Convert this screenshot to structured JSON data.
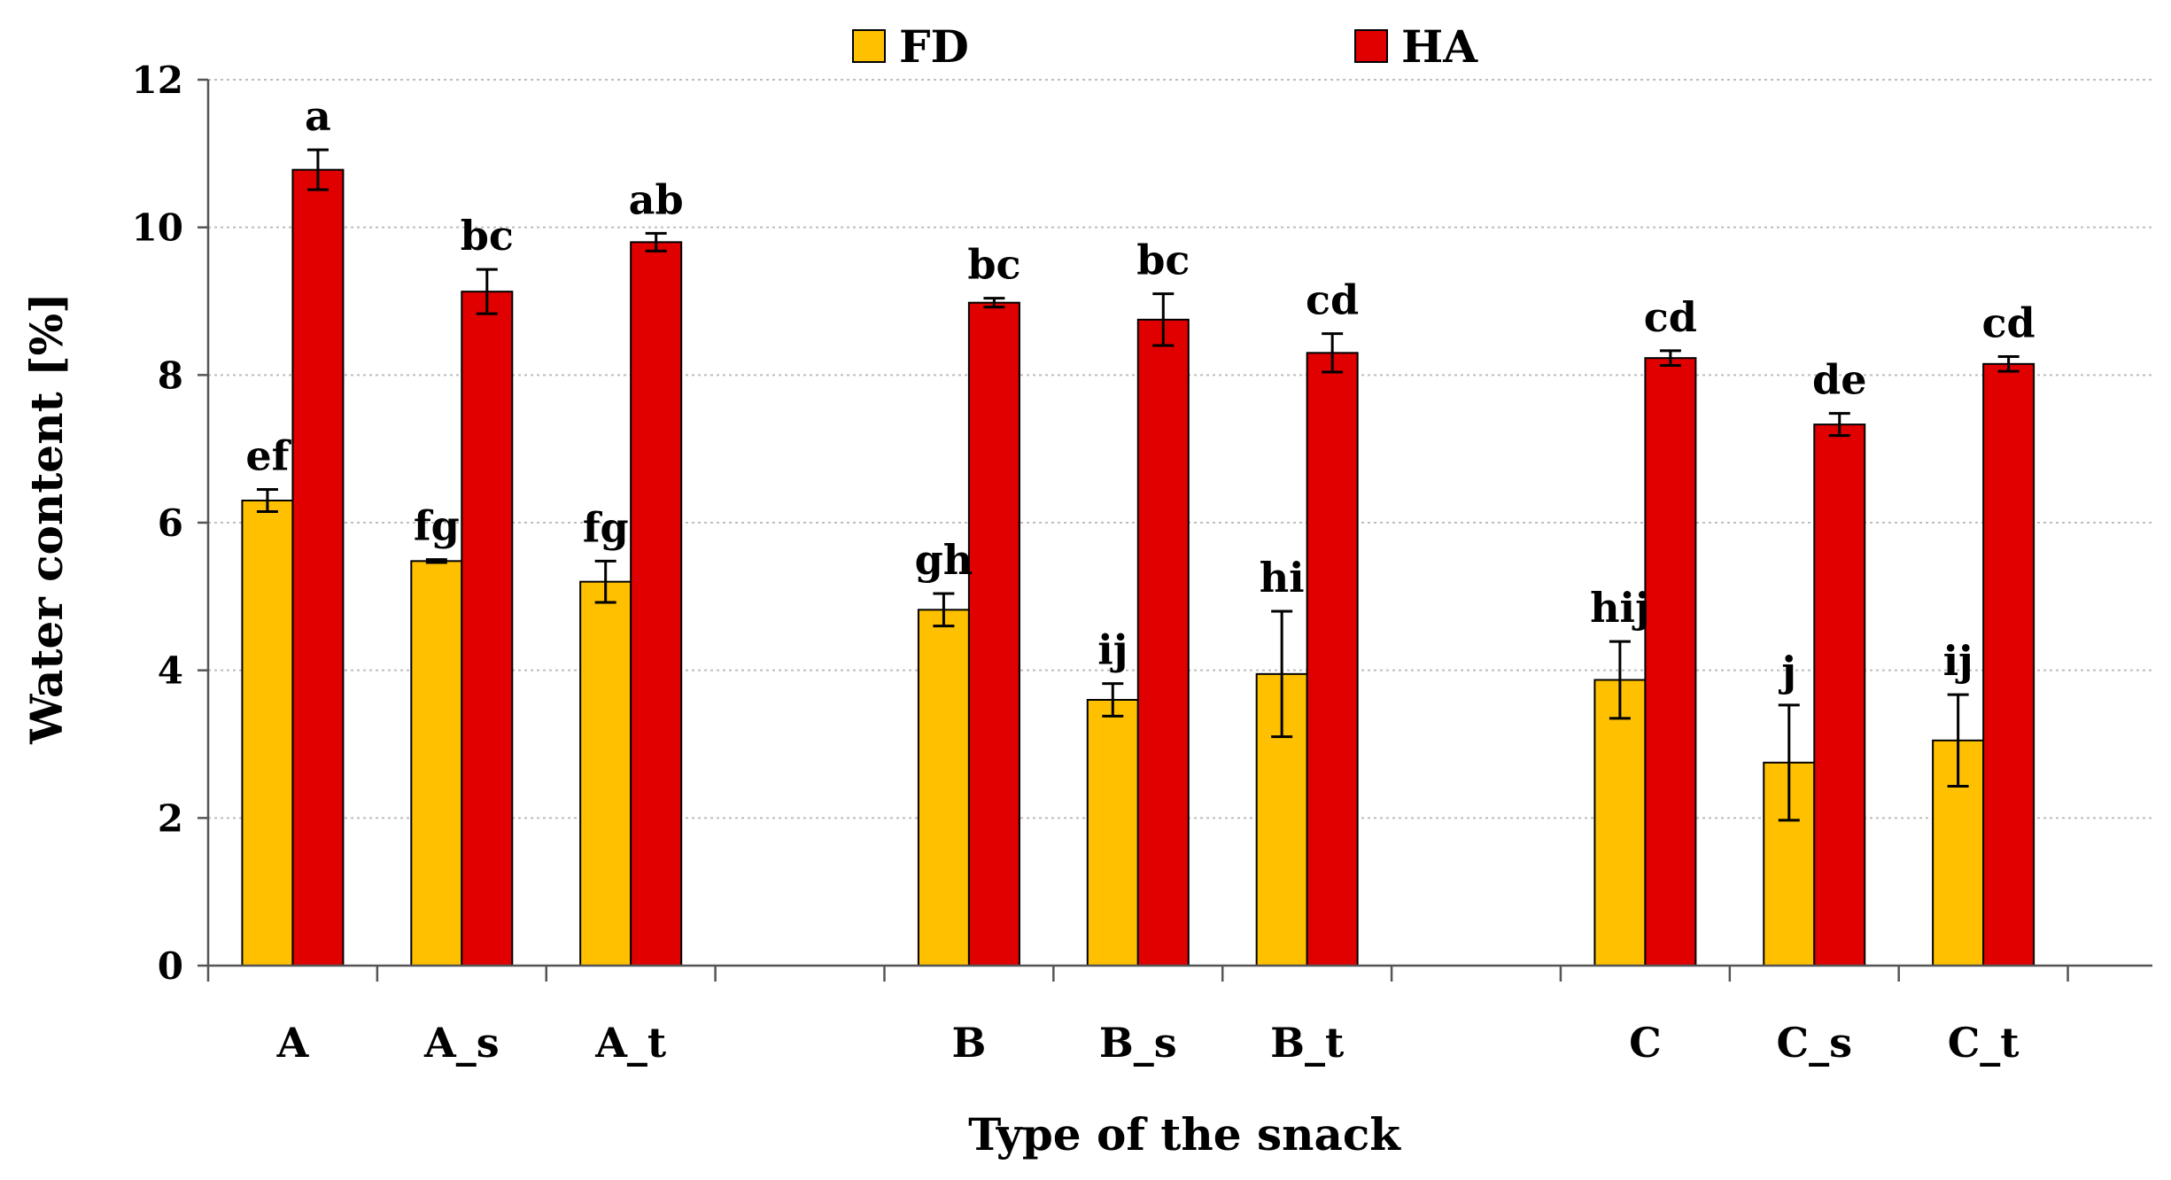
{
  "chart_data": {
    "type": "bar",
    "title": "",
    "xlabel": "Type of the snack",
    "ylabel": "Water content [%]",
    "ylim": [
      0,
      12
    ],
    "yticks": [
      0,
      2,
      4,
      6,
      8,
      10,
      12
    ],
    "grid": true,
    "legend_position": "top",
    "categories": [
      "A",
      "A_s",
      "A_t",
      "",
      "B",
      "B_s",
      "B_t",
      "",
      "C",
      "C_s",
      "C_t"
    ],
    "series": [
      {
        "name": "FD",
        "color": "#FFC000",
        "values": [
          6.3,
          5.48,
          5.2,
          null,
          4.82,
          3.6,
          3.95,
          null,
          3.87,
          2.75,
          3.05
        ],
        "errors": [
          0.15,
          0.02,
          0.28,
          null,
          0.22,
          0.22,
          0.85,
          null,
          0.52,
          0.78,
          0.62
        ],
        "labels": [
          "ef",
          "fg",
          "fg",
          "",
          "gh",
          "ij",
          "hi",
          "",
          "hij",
          "j",
          "ij"
        ]
      },
      {
        "name": "HA",
        "color": "#E00000",
        "values": [
          10.78,
          9.13,
          9.8,
          null,
          8.98,
          8.75,
          8.3,
          null,
          8.23,
          7.33,
          8.15
        ],
        "errors": [
          0.27,
          0.3,
          0.12,
          null,
          0.06,
          0.35,
          0.26,
          null,
          0.1,
          0.15,
          0.1
        ],
        "labels": [
          "a",
          "bc",
          "ab",
          "",
          "bc",
          "bc",
          "cd",
          "",
          "cd",
          "de",
          "cd"
        ]
      }
    ]
  }
}
